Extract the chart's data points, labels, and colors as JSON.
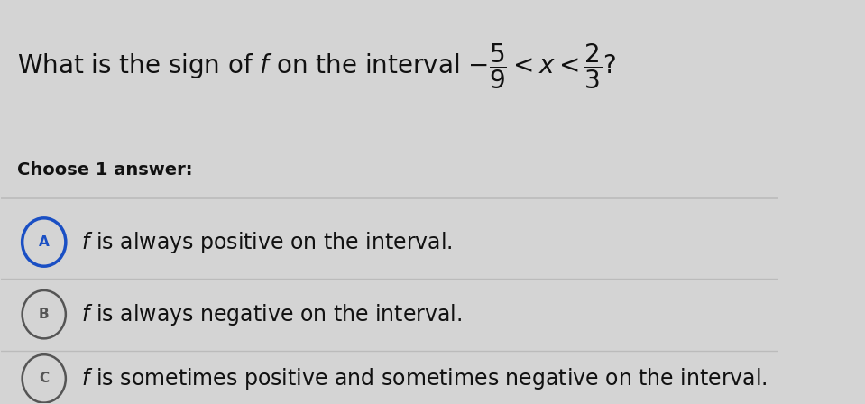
{
  "background_color": "#d4d4d4",
  "title_str": "What is the sign of $f$ on the interval $-\\dfrac{5}{9} < x < \\dfrac{2}{3}$?",
  "choose_label": "Choose 1 answer:",
  "options": [
    {
      "letter": "A",
      "text": " $f$ is always positive on the interval.",
      "selected": true
    },
    {
      "letter": "B",
      "text": " $f$ is always negative on the interval.",
      "selected": false
    },
    {
      "letter": "C",
      "text": " $f$ is sometimes positive and sometimes negative on the interval.",
      "selected": false
    }
  ],
  "option_fontsize": 17,
  "title_fontsize": 20,
  "choose_fontsize": 14,
  "selected_color": "#1a4fc4",
  "unselected_color": "#555555",
  "text_color": "#111111",
  "divider_color": "#bbbbbb"
}
